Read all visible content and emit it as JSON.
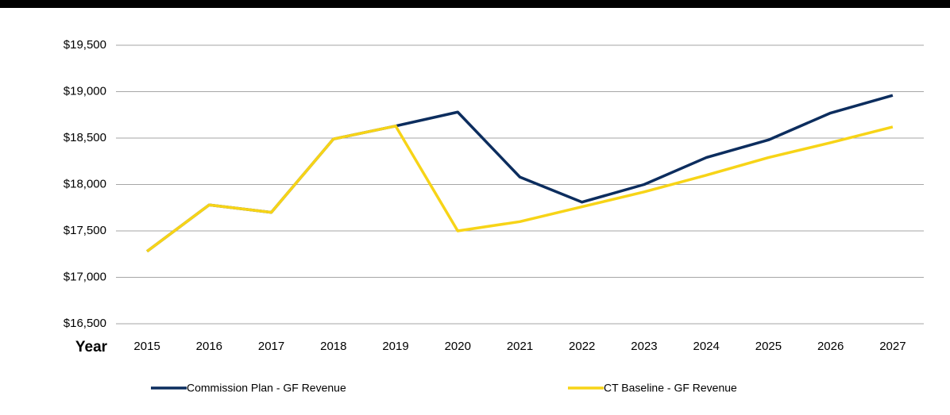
{
  "chart_data": {
    "type": "line",
    "x_label": "Year",
    "categories": [
      "2015",
      "2016",
      "2017",
      "2018",
      "2019",
      "2020",
      "2021",
      "2022",
      "2023",
      "2024",
      "2025",
      "2026",
      "2027"
    ],
    "series": [
      {
        "name": "Commission Plan - GF Revenue",
        "color": "#0c2d5e",
        "values": [
          17280,
          17780,
          17700,
          18490,
          18630,
          18780,
          18080,
          17810,
          18000,
          18290,
          18480,
          18770,
          18960
        ]
      },
      {
        "name": "CT Baseline - GF Revenue",
        "color": "#f7d417",
        "values": [
          17280,
          17780,
          17700,
          18490,
          18630,
          17500,
          17600,
          17760,
          17920,
          18100,
          18290,
          18450,
          18620
        ]
      }
    ],
    "ylim": [
      16500,
      19500
    ],
    "yticks": [
      {
        "value": 16500,
        "label": "$16,500"
      },
      {
        "value": 17000,
        "label": "$17,000"
      },
      {
        "value": 17500,
        "label": "$17,500"
      },
      {
        "value": 18000,
        "label": "$18,000"
      },
      {
        "value": 18500,
        "label": "$18,500"
      },
      {
        "value": 19000,
        "label": "$19,000"
      },
      {
        "value": 19500,
        "label": "$19,500"
      }
    ],
    "grid": true,
    "legend": "bottom"
  }
}
